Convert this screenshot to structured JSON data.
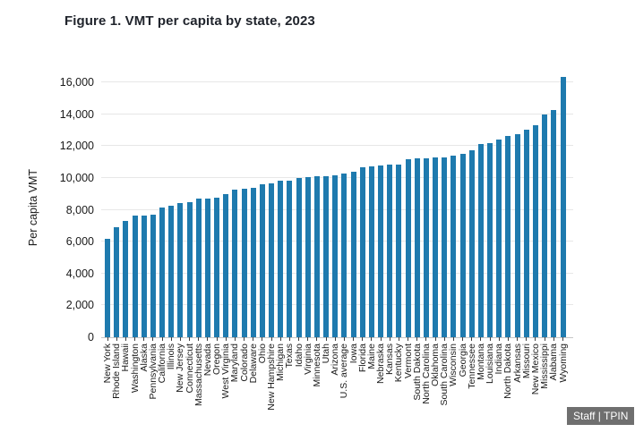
{
  "figure": {
    "title": "Figure 1. VMT per capita by state, 2023",
    "attribution": "Staff | TPIN"
  },
  "chart_data": {
    "type": "bar",
    "title": "Figure 1. VMT per capita by state, 2023",
    "xlabel": "",
    "ylabel": "Per capita VMT",
    "categories": [
      "New York",
      "Rhode Island",
      "Hawaii",
      "Washington",
      "Alaska",
      "Pennsylvania",
      "California",
      "Illinois",
      "New Jersey",
      "Connecticut",
      "Massachusetts",
      "Nevada",
      "Oregon",
      "West Virginia",
      "Maryland",
      "Colorado",
      "Delaware",
      "Ohio",
      "New Hampshire",
      "Michigan",
      "Texas",
      "Idaho",
      "Virginia",
      "Minnesota",
      "Utah",
      "Arizona",
      "U.S. average",
      "Iowa",
      "Florida",
      "Maine",
      "Nebraska",
      "Kansas",
      "Kentucky",
      "Vermont",
      "South Dakota",
      "North Carolina",
      "Oklahoma",
      "South Carolina",
      "Wisconsin",
      "Georgia",
      "Tennessee",
      "Montana",
      "Louisiana",
      "Indiana",
      "North Dakota",
      "Arkansas",
      "Missouri",
      "New Mexico",
      "Mississippi",
      "Alabama",
      "Wyoming"
    ],
    "values": [
      6150,
      6900,
      7300,
      7650,
      7650,
      7700,
      8150,
      8250,
      8400,
      8450,
      8700,
      8700,
      8750,
      9000,
      9250,
      9300,
      9400,
      9600,
      9650,
      9800,
      9850,
      10000,
      10050,
      10100,
      10100,
      10150,
      10250,
      10400,
      10650,
      10700,
      10800,
      10850,
      10850,
      11150,
      11250,
      11250,
      11300,
      11300,
      11400,
      11500,
      11750,
      12150,
      12200,
      12400,
      12650,
      12750,
      13050,
      13300,
      14000,
      14250,
      16350
    ],
    "yticks": [
      0,
      2000,
      4000,
      6000,
      8000,
      10000,
      12000,
      14000,
      16000
    ],
    "ylim": [
      0,
      16500
    ],
    "grid": true,
    "legend": false,
    "bar_color": "#1e7aae",
    "attribution": "Staff | TPIN"
  }
}
